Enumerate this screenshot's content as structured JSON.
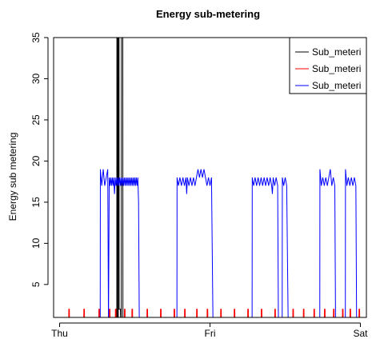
{
  "chart_data": {
    "type": "line",
    "title": "Energy sub-metering",
    "xlabel": "",
    "ylabel": "Energy sub metering",
    "x_ticks": [
      "Thu",
      "Fri",
      "Sat"
    ],
    "xlim_days": [
      -0.04,
      2.04
    ],
    "ylim": [
      1,
      35
    ],
    "y_ticks": [
      5,
      10,
      15,
      20,
      25,
      30,
      35
    ],
    "grid": false,
    "legend_position": "top-right",
    "series": [
      {
        "name": "Sub_meteri",
        "color": "#000000",
        "points": [
          [
            0.0,
            0
          ],
          [
            0.3,
            0
          ],
          [
            0.36,
            0
          ],
          [
            0.361,
            1
          ],
          [
            0.365,
            1
          ],
          [
            0.366,
            0
          ],
          [
            0.38,
            0
          ],
          [
            0.381,
            37
          ],
          [
            0.385,
            37
          ],
          [
            0.386,
            1
          ],
          [
            0.39,
            1
          ],
          [
            0.391,
            37
          ],
          [
            0.395,
            37
          ],
          [
            0.396,
            2
          ],
          [
            0.405,
            2
          ],
          [
            0.406,
            1
          ],
          [
            0.41,
            1
          ],
          [
            0.411,
            37
          ],
          [
            0.415,
            37
          ],
          [
            0.416,
            37
          ],
          [
            0.42,
            37
          ],
          [
            0.421,
            1
          ],
          [
            0.43,
            1
          ],
          [
            0.431,
            0
          ],
          [
            1.0,
            0
          ],
          [
            2.0,
            0
          ]
        ]
      },
      {
        "name": "Sub_meteri",
        "color": "#ff0000",
        "points": [
          [
            0.0,
            0
          ],
          [
            0.06,
            0
          ],
          [
            0.061,
            2
          ],
          [
            0.065,
            2
          ],
          [
            0.066,
            0
          ],
          [
            0.16,
            0
          ],
          [
            0.161,
            2
          ],
          [
            0.165,
            2
          ],
          [
            0.166,
            0
          ],
          [
            0.26,
            0
          ],
          [
            0.261,
            2
          ],
          [
            0.265,
            2
          ],
          [
            0.266,
            0
          ],
          [
            0.33,
            0
          ],
          [
            0.331,
            2
          ],
          [
            0.335,
            2
          ],
          [
            0.336,
            0
          ],
          [
            0.37,
            0
          ],
          [
            0.371,
            2
          ],
          [
            0.375,
            2
          ],
          [
            0.376,
            0
          ],
          [
            0.4,
            0
          ],
          [
            0.401,
            1
          ],
          [
            0.405,
            1
          ],
          [
            0.406,
            0
          ],
          [
            0.43,
            0
          ],
          [
            0.431,
            2
          ],
          [
            0.435,
            2
          ],
          [
            0.436,
            0
          ],
          [
            0.48,
            0
          ],
          [
            0.481,
            2
          ],
          [
            0.485,
            2
          ],
          [
            0.486,
            0
          ],
          [
            0.58,
            0
          ],
          [
            0.581,
            2
          ],
          [
            0.585,
            2
          ],
          [
            0.586,
            0
          ],
          [
            0.67,
            0
          ],
          [
            0.671,
            2
          ],
          [
            0.675,
            2
          ],
          [
            0.676,
            0
          ],
          [
            0.76,
            0
          ],
          [
            0.761,
            2
          ],
          [
            0.765,
            2
          ],
          [
            0.766,
            0
          ],
          [
            0.83,
            0
          ],
          [
            0.831,
            2
          ],
          [
            0.835,
            2
          ],
          [
            0.836,
            0
          ],
          [
            0.91,
            0
          ],
          [
            0.911,
            2
          ],
          [
            0.915,
            2
          ],
          [
            0.916,
            0
          ],
          [
            0.98,
            0
          ],
          [
            0.981,
            2
          ],
          [
            0.985,
            2
          ],
          [
            0.986,
            0
          ],
          [
            1.07,
            0
          ],
          [
            1.071,
            2
          ],
          [
            1.075,
            2
          ],
          [
            1.076,
            0
          ],
          [
            1.16,
            0
          ],
          [
            1.161,
            2
          ],
          [
            1.165,
            2
          ],
          [
            1.166,
            0
          ],
          [
            1.25,
            0
          ],
          [
            1.251,
            2
          ],
          [
            1.255,
            2
          ],
          [
            1.256,
            0
          ],
          [
            1.34,
            0
          ],
          [
            1.341,
            2
          ],
          [
            1.345,
            2
          ],
          [
            1.346,
            0
          ],
          [
            1.43,
            0
          ],
          [
            1.431,
            2
          ],
          [
            1.435,
            2
          ],
          [
            1.436,
            0
          ],
          [
            1.47,
            0
          ],
          [
            1.471,
            1
          ],
          [
            1.475,
            1
          ],
          [
            1.476,
            0
          ],
          [
            1.55,
            0
          ],
          [
            1.551,
            2
          ],
          [
            1.555,
            2
          ],
          [
            1.556,
            0
          ],
          [
            1.62,
            0
          ],
          [
            1.621,
            2
          ],
          [
            1.625,
            2
          ],
          [
            1.626,
            0
          ],
          [
            1.69,
            0
          ],
          [
            1.691,
            2
          ],
          [
            1.695,
            2
          ],
          [
            1.696,
            0
          ],
          [
            1.76,
            0
          ],
          [
            1.761,
            2
          ],
          [
            1.765,
            2
          ],
          [
            1.766,
            0
          ],
          [
            1.82,
            0
          ],
          [
            1.821,
            2
          ],
          [
            1.825,
            2
          ],
          [
            1.826,
            0
          ],
          [
            1.88,
            0
          ],
          [
            1.881,
            2
          ],
          [
            1.885,
            2
          ],
          [
            1.886,
            0
          ],
          [
            1.93,
            0
          ],
          [
            1.931,
            2
          ],
          [
            1.935,
            2
          ],
          [
            1.936,
            0
          ],
          [
            1.99,
            0
          ],
          [
            1.991,
            2
          ],
          [
            1.995,
            2
          ],
          [
            1.996,
            0
          ],
          [
            2.0,
            0
          ]
        ]
      },
      {
        "name": "Sub_meteri",
        "color": "#0000ff",
        "points": [
          [
            0.0,
            0
          ],
          [
            0.27,
            0
          ],
          [
            0.271,
            19
          ],
          [
            0.28,
            17
          ],
          [
            0.29,
            19
          ],
          [
            0.3,
            17
          ],
          [
            0.31,
            18
          ],
          [
            0.32,
            19
          ],
          [
            0.325,
            0
          ],
          [
            0.33,
            18
          ],
          [
            0.335,
            17
          ],
          [
            0.34,
            18
          ],
          [
            0.345,
            17
          ],
          [
            0.35,
            18
          ],
          [
            0.355,
            17
          ],
          [
            0.36,
            18
          ],
          [
            0.365,
            16
          ],
          [
            0.37,
            18
          ],
          [
            0.375,
            17
          ],
          [
            0.38,
            18
          ],
          [
            0.385,
            17
          ],
          [
            0.39,
            18
          ],
          [
            0.395,
            17
          ],
          [
            0.4,
            18
          ],
          [
            0.405,
            17
          ],
          [
            0.41,
            18
          ],
          [
            0.415,
            17
          ],
          [
            0.42,
            18
          ],
          [
            0.425,
            17
          ],
          [
            0.43,
            18
          ],
          [
            0.435,
            17
          ],
          [
            0.44,
            18
          ],
          [
            0.445,
            17
          ],
          [
            0.45,
            18
          ],
          [
            0.455,
            17
          ],
          [
            0.46,
            18
          ],
          [
            0.465,
            17
          ],
          [
            0.47,
            18
          ],
          [
            0.475,
            17
          ],
          [
            0.48,
            18
          ],
          [
            0.485,
            17
          ],
          [
            0.49,
            18
          ],
          [
            0.495,
            17
          ],
          [
            0.5,
            18
          ],
          [
            0.505,
            17
          ],
          [
            0.51,
            18
          ],
          [
            0.515,
            17
          ],
          [
            0.52,
            18
          ],
          [
            0.525,
            15
          ],
          [
            0.53,
            0
          ],
          [
            0.78,
            0
          ],
          [
            0.781,
            18
          ],
          [
            0.79,
            17
          ],
          [
            0.8,
            18
          ],
          [
            0.81,
            17
          ],
          [
            0.82,
            18
          ],
          [
            0.83,
            17
          ],
          [
            0.84,
            18
          ],
          [
            0.845,
            16
          ],
          [
            0.85,
            18
          ],
          [
            0.86,
            17
          ],
          [
            0.87,
            18
          ],
          [
            0.88,
            17
          ],
          [
            0.89,
            18
          ],
          [
            0.9,
            17
          ],
          [
            0.91,
            18
          ],
          [
            0.92,
            19
          ],
          [
            0.93,
            18
          ],
          [
            0.94,
            19
          ],
          [
            0.95,
            18
          ],
          [
            0.96,
            19
          ],
          [
            0.97,
            18
          ],
          [
            0.98,
            17
          ],
          [
            0.99,
            18
          ],
          [
            1.0,
            17
          ],
          [
            1.01,
            18
          ],
          [
            1.02,
            0
          ],
          [
            1.28,
            0
          ],
          [
            1.281,
            18
          ],
          [
            1.29,
            17
          ],
          [
            1.3,
            18
          ],
          [
            1.31,
            17
          ],
          [
            1.32,
            18
          ],
          [
            1.33,
            17
          ],
          [
            1.34,
            18
          ],
          [
            1.35,
            17
          ],
          [
            1.36,
            18
          ],
          [
            1.37,
            17
          ],
          [
            1.38,
            18
          ],
          [
            1.39,
            17
          ],
          [
            1.4,
            18
          ],
          [
            1.41,
            17
          ],
          [
            1.415,
            16
          ],
          [
            1.42,
            18
          ],
          [
            1.43,
            17
          ],
          [
            1.44,
            18
          ],
          [
            1.45,
            17
          ],
          [
            1.455,
            0
          ],
          [
            1.46,
            0
          ],
          [
            1.48,
            0
          ],
          [
            1.481,
            18
          ],
          [
            1.49,
            17
          ],
          [
            1.5,
            18
          ],
          [
            1.51,
            17
          ],
          [
            1.52,
            0
          ],
          [
            1.73,
            0
          ],
          [
            1.731,
            19
          ],
          [
            1.74,
            17
          ],
          [
            1.75,
            18
          ],
          [
            1.76,
            17
          ],
          [
            1.77,
            18
          ],
          [
            1.78,
            17
          ],
          [
            1.79,
            18
          ],
          [
            1.8,
            19
          ],
          [
            1.81,
            17
          ],
          [
            1.82,
            18
          ],
          [
            1.83,
            17
          ],
          [
            1.835,
            0
          ],
          [
            1.9,
            0
          ],
          [
            1.901,
            19
          ],
          [
            1.91,
            17
          ],
          [
            1.92,
            18
          ],
          [
            1.93,
            17
          ],
          [
            1.94,
            18
          ],
          [
            1.95,
            17
          ],
          [
            1.96,
            18
          ],
          [
            1.97,
            17
          ],
          [
            1.975,
            0
          ],
          [
            2.0,
            0
          ]
        ]
      }
    ]
  }
}
